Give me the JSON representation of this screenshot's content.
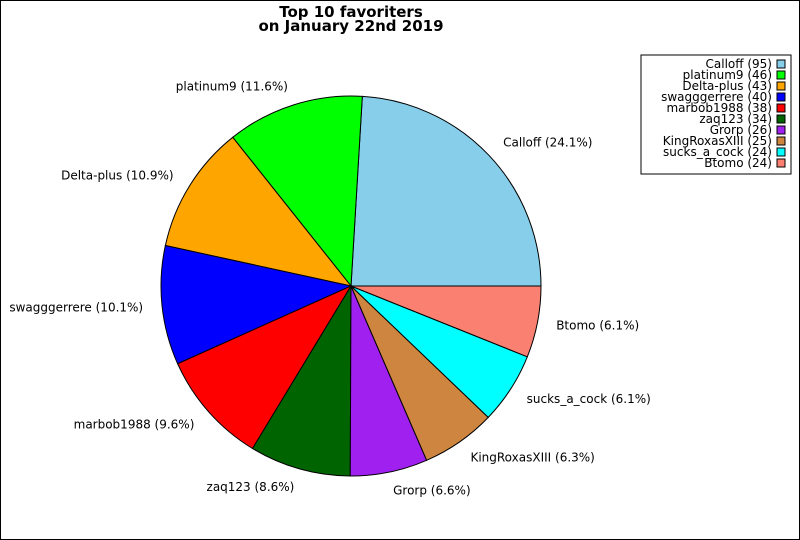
{
  "chart_data": {
    "type": "pie",
    "title": "Top 10 favoriters",
    "subtitle": "on January 22nd 2019",
    "legend_position": "top-right",
    "slices": [
      {
        "name": "Calloff",
        "value": 95,
        "percent_label": "24.1%",
        "legend_label": "Calloff (95)",
        "color": "#87ceeb"
      },
      {
        "name": "platinum9",
        "value": 46,
        "percent_label": "11.6%",
        "legend_label": "platinum9 (46)",
        "color": "#00ff00"
      },
      {
        "name": "Delta-plus",
        "value": 43,
        "percent_label": "10.9%",
        "legend_label": "Delta-plus (43)",
        "color": "#ffa500"
      },
      {
        "name": "swagggerrere",
        "value": 40,
        "percent_label": "10.1%",
        "legend_label": "swagggerrere (40)",
        "color": "#0000ff"
      },
      {
        "name": "marbob1988",
        "value": 38,
        "percent_label": "9.6%",
        "legend_label": "marbob1988 (38)",
        "color": "#ff0000"
      },
      {
        "name": "zaq123",
        "value": 34,
        "percent_label": "8.6%",
        "legend_label": "zaq123 (34)",
        "color": "#006400"
      },
      {
        "name": "Grorp",
        "value": 26,
        "percent_label": "6.6%",
        "legend_label": "Grorp (26)",
        "color": "#a020f0"
      },
      {
        "name": "KingRoxasXIII",
        "value": 25,
        "percent_label": "6.3%",
        "legend_label": "KingRoxasXIII (25)",
        "color": "#cd853f"
      },
      {
        "name": "sucks_a_cock",
        "value": 24,
        "percent_label": "6.1%",
        "legend_label": "sucks_a_cock (24)",
        "color": "#00ffff"
      },
      {
        "name": "Btomo",
        "value": 24,
        "percent_label": "6.1%",
        "legend_label": "Btomo (24)",
        "color": "#fa8072"
      }
    ]
  }
}
